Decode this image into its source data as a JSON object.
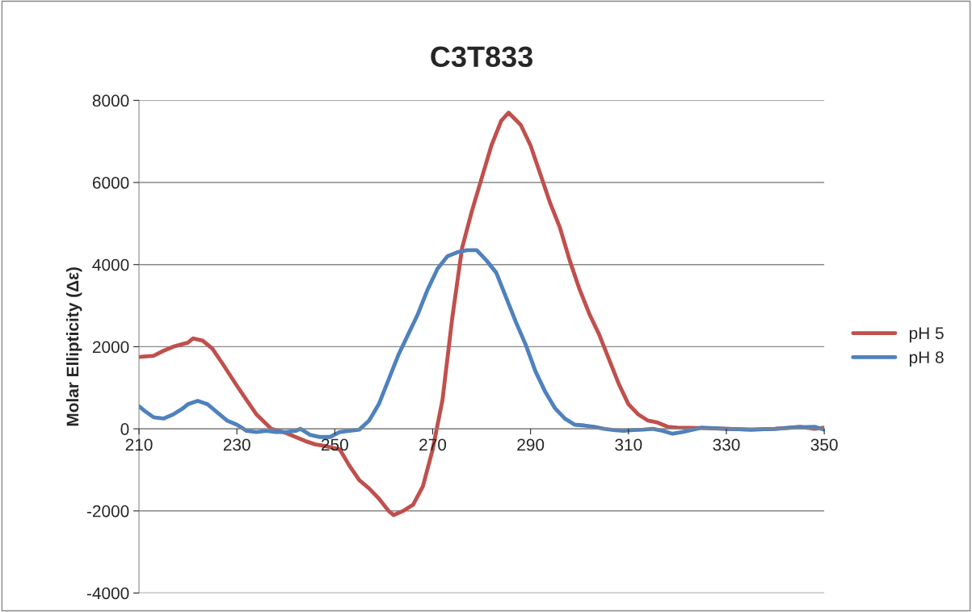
{
  "chart_data": {
    "type": "line",
    "title": "C3T833",
    "ylabel": "Molar Ellipticity (Δε)",
    "xlim": [
      210,
      350
    ],
    "xticks": [
      210,
      230,
      250,
      270,
      290,
      310,
      330,
      350
    ],
    "ylim": [
      -4000,
      8000
    ],
    "yticks": [
      -4000,
      -2000,
      0,
      2000,
      4000,
      6000,
      8000
    ],
    "grid": "y",
    "legend": "right",
    "marker": "none",
    "line_style": "solid",
    "series": [
      {
        "name": "pH 5",
        "color": "#c0504d",
        "x": [
          210,
          213,
          215,
          217,
          220,
          221,
          223,
          225,
          227,
          230,
          232,
          234,
          237,
          240,
          242,
          244,
          246,
          248,
          251,
          253,
          255,
          257,
          259,
          261,
          262,
          264,
          266,
          268,
          270,
          272,
          274,
          276,
          278,
          280,
          282,
          284,
          285.5,
          288,
          290,
          292,
          294,
          296,
          298,
          300,
          302,
          304,
          306,
          308,
          310,
          312,
          314,
          316,
          318,
          320,
          325,
          330,
          335,
          340,
          345,
          348,
          350
        ],
        "values": [
          1750,
          1780,
          1900,
          2000,
          2100,
          2200,
          2150,
          1950,
          1600,
          1050,
          700,
          350,
          0,
          -100,
          -200,
          -300,
          -380,
          -420,
          -500,
          -900,
          -1250,
          -1450,
          -1700,
          -2000,
          -2100,
          -2000,
          -1850,
          -1400,
          -500,
          700,
          2700,
          4400,
          5300,
          6100,
          6900,
          7500,
          7700,
          7400,
          6900,
          6200,
          5500,
          4900,
          4100,
          3400,
          2800,
          2300,
          1700,
          1100,
          600,
          350,
          200,
          150,
          50,
          30,
          20,
          0,
          -20,
          0,
          50,
          0,
          30
        ]
      },
      {
        "name": "pH 8",
        "color": "#4f81bd",
        "x": [
          210,
          211,
          213,
          215,
          217,
          219,
          220,
          222,
          224,
          226,
          228,
          230,
          232,
          234,
          236,
          238,
          240,
          242,
          243,
          245,
          247,
          249,
          251,
          253,
          255,
          257,
          259,
          261,
          263,
          265,
          267,
          269,
          271,
          273,
          275,
          277,
          279,
          281,
          283,
          285,
          287,
          289,
          291,
          293,
          295,
          297,
          299,
          301,
          303,
          305,
          307,
          309,
          311,
          313,
          315,
          317,
          319,
          321,
          325,
          330,
          335,
          340,
          345,
          348,
          350
        ],
        "values": [
          550,
          450,
          280,
          250,
          350,
          500,
          600,
          680,
          600,
          400,
          200,
          100,
          -50,
          -80,
          -50,
          -80,
          -80,
          -50,
          0,
          -150,
          -200,
          -200,
          -80,
          -50,
          -20,
          200,
          600,
          1200,
          1800,
          2300,
          2800,
          3400,
          3900,
          4200,
          4300,
          4350,
          4350,
          4100,
          3800,
          3200,
          2600,
          2050,
          1400,
          900,
          500,
          250,
          100,
          80,
          50,
          0,
          -30,
          -50,
          -30,
          -20,
          0,
          -50,
          -120,
          -80,
          30,
          0,
          -20,
          0,
          40,
          50,
          -20
        ]
      }
    ]
  }
}
